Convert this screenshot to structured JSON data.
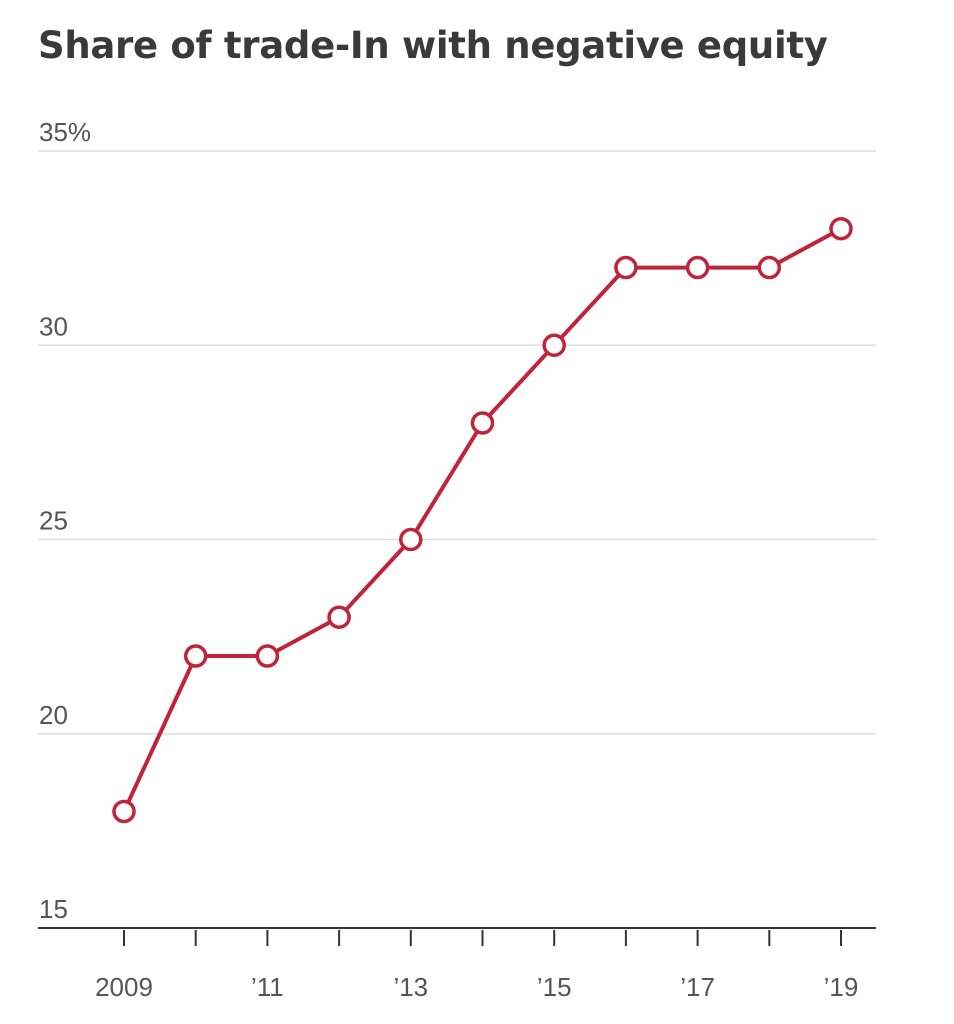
{
  "chart_data": {
    "type": "line",
    "title": "Share of trade-In with negative equity",
    "xlabel": "",
    "ylabel": "",
    "x": [
      2009,
      2010,
      2011,
      2012,
      2013,
      2014,
      2015,
      2016,
      2017,
      2018,
      2019
    ],
    "series": [
      {
        "values": [
          18,
          22,
          22,
          23,
          25,
          28,
          30,
          32,
          32,
          32,
          33
        ]
      }
    ],
    "xlim": [
      2009,
      2019
    ],
    "ylim": [
      15,
      35
    ],
    "y_ticks": [
      {
        "value": 15,
        "label": "15"
      },
      {
        "value": 20,
        "label": "20"
      },
      {
        "value": 25,
        "label": "25"
      },
      {
        "value": 30,
        "label": "30"
      },
      {
        "value": 35,
        "label": "35%"
      }
    ],
    "x_ticks": [
      {
        "value": 2009,
        "label": "2009"
      },
      {
        "value": 2010,
        "label": ""
      },
      {
        "value": 2011,
        "label": "’11"
      },
      {
        "value": 2012,
        "label": ""
      },
      {
        "value": 2013,
        "label": "’13"
      },
      {
        "value": 2014,
        "label": ""
      },
      {
        "value": 2015,
        "label": "’15"
      },
      {
        "value": 2016,
        "label": ""
      },
      {
        "value": 2017,
        "label": "’17"
      },
      {
        "value": 2018,
        "label": ""
      },
      {
        "value": 2019,
        "label": "’19"
      }
    ],
    "grid": true,
    "legend": "none",
    "colors": {
      "line": "#c0243a",
      "marker_fill": "#ffffff",
      "grid": "#dddddd",
      "axis": "#333333",
      "text": "#555555",
      "title": "#3a3a3a"
    }
  }
}
